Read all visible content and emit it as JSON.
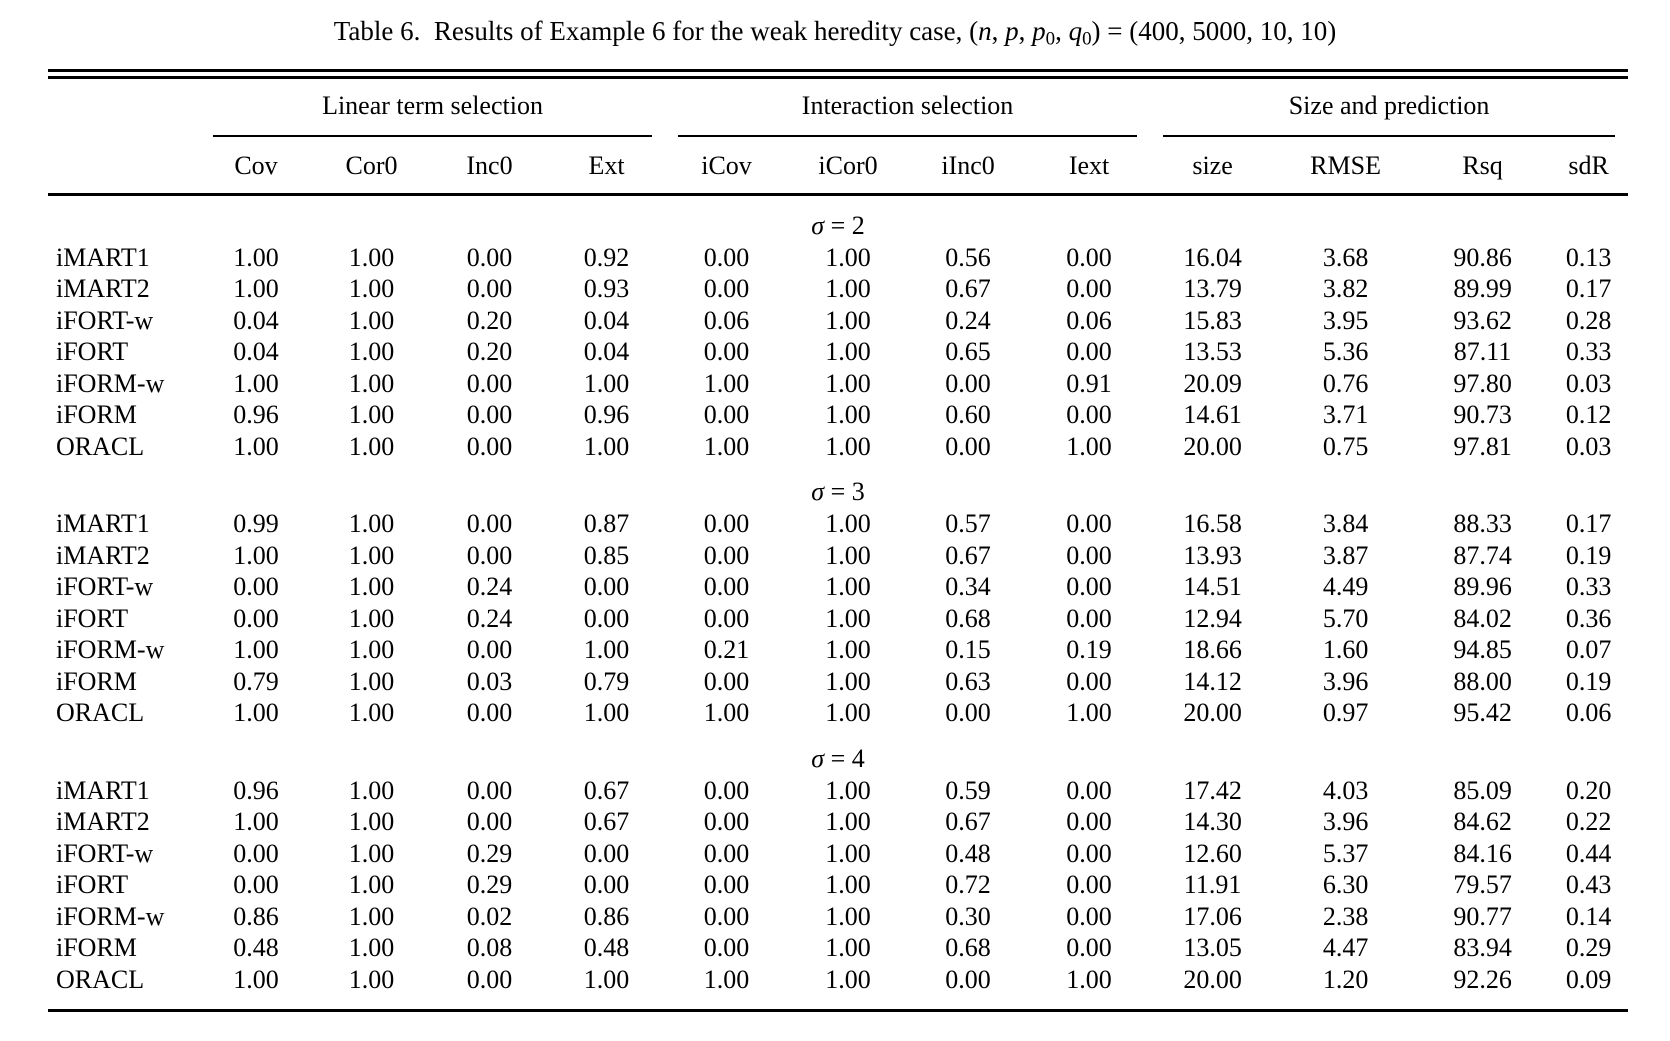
{
  "caption": {
    "segments": [
      {
        "t": "Table 6.  Results of Example 6 for the weak heredity case, ("
      },
      {
        "t": "n",
        "i": true
      },
      {
        "t": ", "
      },
      {
        "t": "p",
        "i": true
      },
      {
        "t": ", "
      },
      {
        "t": "p",
        "i": true
      },
      {
        "t": "0",
        "sub": true
      },
      {
        "t": ", "
      },
      {
        "t": "q",
        "i": true
      },
      {
        "t": "0",
        "sub": true
      },
      {
        "t": ") = (400, 5000, 10, 10)"
      }
    ]
  },
  "table": {
    "groups": [
      "Linear term selection",
      "Interaction selection",
      "Size and prediction"
    ],
    "columns": [
      "Cov",
      "Cor0",
      "Inc0",
      "Ext",
      "iCov",
      "iCor0",
      "iInc0",
      "Iext",
      "size",
      "RMSE",
      "Rsq",
      "sdR"
    ],
    "sections": [
      {
        "header_segments": [
          {
            "t": "σ",
            "i": true
          },
          {
            "t": " = 2"
          }
        ],
        "rows": [
          {
            "label": "iMART1",
            "values": [
              "1.00",
              "1.00",
              "0.00",
              "0.92",
              "0.00",
              "1.00",
              "0.56",
              "0.00",
              "16.04",
              "3.68",
              "90.86",
              "0.13"
            ]
          },
          {
            "label": "iMART2",
            "values": [
              "1.00",
              "1.00",
              "0.00",
              "0.93",
              "0.00",
              "1.00",
              "0.67",
              "0.00",
              "13.79",
              "3.82",
              "89.99",
              "0.17"
            ]
          },
          {
            "label": "iFORT-w",
            "values": [
              "0.04",
              "1.00",
              "0.20",
              "0.04",
              "0.06",
              "1.00",
              "0.24",
              "0.06",
              "15.83",
              "3.95",
              "93.62",
              "0.28"
            ]
          },
          {
            "label": "iFORT",
            "values": [
              "0.04",
              "1.00",
              "0.20",
              "0.04",
              "0.00",
              "1.00",
              "0.65",
              "0.00",
              "13.53",
              "5.36",
              "87.11",
              "0.33"
            ]
          },
          {
            "label": "iFORM-w",
            "values": [
              "1.00",
              "1.00",
              "0.00",
              "1.00",
              "1.00",
              "1.00",
              "0.00",
              "0.91",
              "20.09",
              "0.76",
              "97.80",
              "0.03"
            ]
          },
          {
            "label": "iFORM",
            "values": [
              "0.96",
              "1.00",
              "0.00",
              "0.96",
              "0.00",
              "1.00",
              "0.60",
              "0.00",
              "14.61",
              "3.71",
              "90.73",
              "0.12"
            ]
          },
          {
            "label": "ORACL",
            "values": [
              "1.00",
              "1.00",
              "0.00",
              "1.00",
              "1.00",
              "1.00",
              "0.00",
              "1.00",
              "20.00",
              "0.75",
              "97.81",
              "0.03"
            ]
          }
        ]
      },
      {
        "header_segments": [
          {
            "t": "σ",
            "i": true
          },
          {
            "t": " = 3"
          }
        ],
        "rows": [
          {
            "label": "iMART1",
            "values": [
              "0.99",
              "1.00",
              "0.00",
              "0.87",
              "0.00",
              "1.00",
              "0.57",
              "0.00",
              "16.58",
              "3.84",
              "88.33",
              "0.17"
            ]
          },
          {
            "label": "iMART2",
            "values": [
              "1.00",
              "1.00",
              "0.00",
              "0.85",
              "0.00",
              "1.00",
              "0.67",
              "0.00",
              "13.93",
              "3.87",
              "87.74",
              "0.19"
            ]
          },
          {
            "label": "iFORT-w",
            "values": [
              "0.00",
              "1.00",
              "0.24",
              "0.00",
              "0.00",
              "1.00",
              "0.34",
              "0.00",
              "14.51",
              "4.49",
              "89.96",
              "0.33"
            ]
          },
          {
            "label": "iFORT",
            "values": [
              "0.00",
              "1.00",
              "0.24",
              "0.00",
              "0.00",
              "1.00",
              "0.68",
              "0.00",
              "12.94",
              "5.70",
              "84.02",
              "0.36"
            ]
          },
          {
            "label": "iFORM-w",
            "values": [
              "1.00",
              "1.00",
              "0.00",
              "1.00",
              "0.21",
              "1.00",
              "0.15",
              "0.19",
              "18.66",
              "1.60",
              "94.85",
              "0.07"
            ]
          },
          {
            "label": "iFORM",
            "values": [
              "0.79",
              "1.00",
              "0.03",
              "0.79",
              "0.00",
              "1.00",
              "0.63",
              "0.00",
              "14.12",
              "3.96",
              "88.00",
              "0.19"
            ]
          },
          {
            "label": "ORACL",
            "values": [
              "1.00",
              "1.00",
              "0.00",
              "1.00",
              "1.00",
              "1.00",
              "0.00",
              "1.00",
              "20.00",
              "0.97",
              "95.42",
              "0.06"
            ]
          }
        ]
      },
      {
        "header_segments": [
          {
            "t": "σ",
            "i": true
          },
          {
            "t": " = 4"
          }
        ],
        "rows": [
          {
            "label": "iMART1",
            "values": [
              "0.96",
              "1.00",
              "0.00",
              "0.67",
              "0.00",
              "1.00",
              "0.59",
              "0.00",
              "17.42",
              "4.03",
              "85.09",
              "0.20"
            ]
          },
          {
            "label": "iMART2",
            "values": [
              "1.00",
              "1.00",
              "0.00",
              "0.67",
              "0.00",
              "1.00",
              "0.67",
              "0.00",
              "14.30",
              "3.96",
              "84.62",
              "0.22"
            ]
          },
          {
            "label": "iFORT-w",
            "values": [
              "0.00",
              "1.00",
              "0.29",
              "0.00",
              "0.00",
              "1.00",
              "0.48",
              "0.00",
              "12.60",
              "5.37",
              "84.16",
              "0.44"
            ]
          },
          {
            "label": "iFORT",
            "values": [
              "0.00",
              "1.00",
              "0.29",
              "0.00",
              "0.00",
              "1.00",
              "0.72",
              "0.00",
              "11.91",
              "6.30",
              "79.57",
              "0.43"
            ]
          },
          {
            "label": "iFORM-w",
            "values": [
              "0.86",
              "1.00",
              "0.02",
              "0.86",
              "0.00",
              "1.00",
              "0.30",
              "0.00",
              "17.06",
              "2.38",
              "90.77",
              "0.14"
            ]
          },
          {
            "label": "iFORM",
            "values": [
              "0.48",
              "1.00",
              "0.08",
              "0.48",
              "0.00",
              "1.00",
              "0.68",
              "0.00",
              "13.05",
              "4.47",
              "83.94",
              "0.29"
            ]
          },
          {
            "label": "ORACL",
            "values": [
              "1.00",
              "1.00",
              "0.00",
              "1.00",
              "1.00",
              "1.00",
              "0.00",
              "1.00",
              "20.00",
              "1.20",
              "92.26",
              "0.09"
            ]
          }
        ]
      }
    ]
  }
}
